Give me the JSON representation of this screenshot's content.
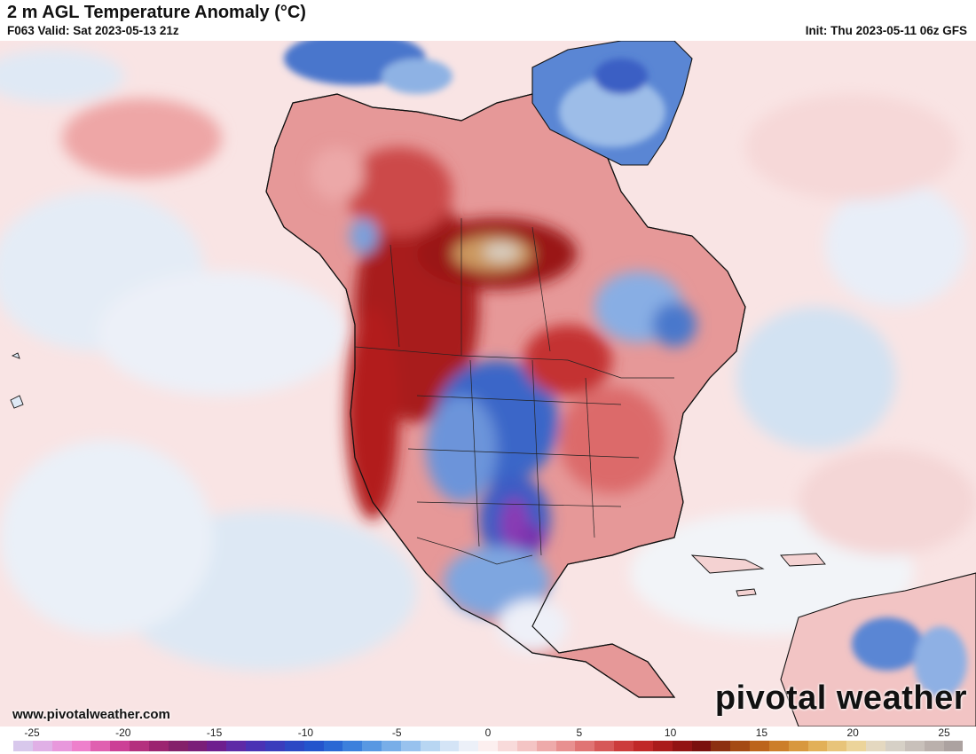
{
  "header": {
    "title": "2 m AGL Temperature Anomaly (°C)",
    "valid": "F063 Valid: Sat 2023-05-13 21z",
    "init": "Init: Thu 2023-05-11 06z GFS"
  },
  "watermark": {
    "brand": "pivotal weather",
    "url": "www.pivotalweather.com"
  },
  "legend": {
    "ticks": [
      "-25",
      "-20",
      "-15",
      "-10",
      "-5",
      "0",
      "5",
      "10",
      "15",
      "20",
      "25"
    ],
    "colors": [
      "#d8c8ec",
      "#e0b0e6",
      "#e898dc",
      "#ee80cc",
      "#e060b0",
      "#cc4096",
      "#b4307e",
      "#9c2470",
      "#84206a",
      "#7a1e78",
      "#6e1e8e",
      "#5e2aa6",
      "#4a32b4",
      "#3a3cbc",
      "#2c48c4",
      "#2454cc",
      "#2a68d4",
      "#3c80dc",
      "#5898e2",
      "#78aee8",
      "#98c2ee",
      "#b8d6f2",
      "#d4e4f6",
      "#ecf0f8",
      "#fcefef",
      "#f8dada",
      "#f4c4c4",
      "#eeaaaa",
      "#e89090",
      "#e07474",
      "#d65858",
      "#cc3c3c",
      "#c02828",
      "#aa1c1c",
      "#921414",
      "#7a100e",
      "#8c3010",
      "#a44a14",
      "#bc641c",
      "#cc7e2a",
      "#d8983e",
      "#e2b058",
      "#e8c47a",
      "#ecd49a",
      "#e4d8c0",
      "#d6d0c6",
      "#c8c0ba",
      "#bab0ac",
      "#aca2a0"
    ]
  }
}
